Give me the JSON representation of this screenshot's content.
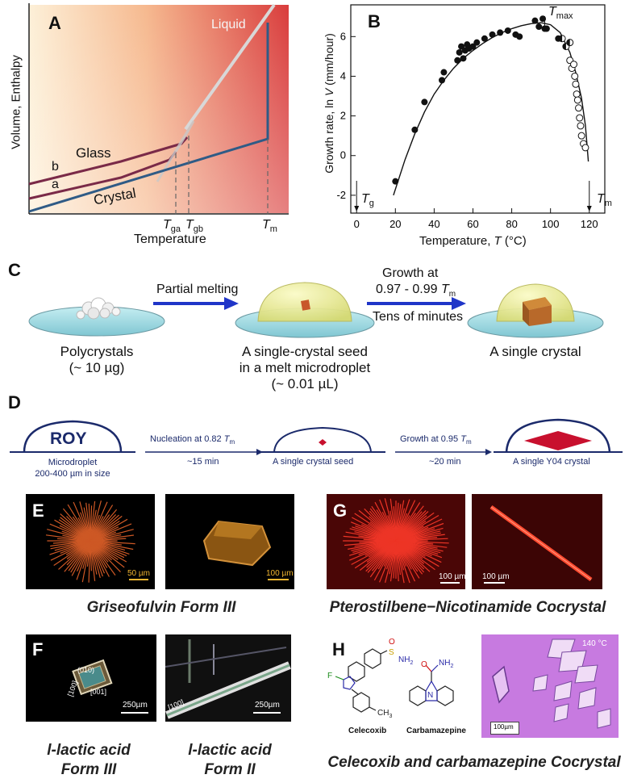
{
  "panel_a": {
    "label": "A",
    "ylabel": "Volume, Enthalpy",
    "xlabel": "Temperature",
    "liquid": "Liquid",
    "glass": "Glass",
    "crystal": "Crystal",
    "curve_b": "b",
    "curve_a": "a",
    "tga_main": "T",
    "tga_sub": "ga",
    "tgb_main": "T",
    "tgb_sub": "gb",
    "tm_main": "T",
    "tm_sub": "m"
  },
  "panel_b": {
    "label": "B",
    "ylabel_prefix": "Growth rate, ln",
    "ylabel_var": "V",
    "ylabel_unit": " (mm/hour)",
    "xlabel_prefix": "Temperature, ",
    "xlabel_var": "T",
    "xlabel_unit": " (°C)",
    "tmax_main": "T",
    "tmax_sub": "max",
    "tg_main": "T",
    "tg_sub": "g",
    "tm_main": "T",
    "tm_sub": "m",
    "x_ticks": [
      "0",
      "20",
      "40",
      "60",
      "80",
      "100",
      "120"
    ],
    "y_ticks": [
      "-2",
      "0",
      "2",
      "4",
      "6"
    ]
  },
  "chart_data": {
    "type": "scatter",
    "xlabel": "Temperature, T (°C)",
    "ylabel": "Growth rate, ln V (mm/hour)",
    "xlim": [
      -3,
      128
    ],
    "ylim": [
      -2.9,
      7.6
    ],
    "x_ticks": [
      0,
      20,
      40,
      60,
      80,
      100,
      120
    ],
    "y_ticks": [
      -2,
      0,
      2,
      4,
      6
    ],
    "grid": false,
    "series": [
      {
        "marker": "filled",
        "x": [
          20,
          30,
          35,
          44,
          45,
          52,
          53,
          54,
          55,
          56,
          57,
          58,
          60,
          62,
          66,
          70,
          74,
          78,
          82,
          84,
          92,
          94,
          96,
          97,
          98,
          104
        ],
        "y": [
          -1.3,
          1.3,
          2.7,
          3.8,
          4.2,
          4.8,
          5.2,
          5.5,
          4.9,
          5.3,
          5.6,
          5.4,
          5.5,
          5.7,
          5.9,
          6.1,
          6.2,
          6.3,
          6.1,
          6.0,
          6.8,
          6.5,
          6.9,
          6.4,
          6.4,
          5.9
        ]
      },
      {
        "marker": "half-filled",
        "x": [
          106,
          108,
          110
        ],
        "y": [
          5.9,
          5.5,
          5.7
        ]
      },
      {
        "marker": "open",
        "x": [
          110,
          111,
          112,
          112.5,
          113,
          113.5,
          114,
          114.5,
          115,
          115.5,
          116,
          117,
          118
        ],
        "y": [
          4.8,
          4.4,
          4.6,
          4.0,
          3.6,
          3.1,
          2.8,
          2.4,
          1.9,
          1.5,
          1.0,
          0.6,
          0.4
        ]
      }
    ],
    "curve": {
      "x": [
        19,
        25,
        30,
        35,
        40,
        45,
        50,
        55,
        60,
        65,
        70,
        75,
        80,
        85,
        90,
        95,
        100,
        105,
        110,
        113,
        116,
        118,
        119.5
      ],
      "y": [
        -2.0,
        -0.2,
        1.1,
        2.2,
        3.1,
        3.8,
        4.4,
        4.9,
        5.3,
        5.65,
        5.95,
        6.2,
        6.4,
        6.55,
        6.65,
        6.7,
        6.6,
        6.2,
        5.2,
        4.2,
        2.9,
        1.5,
        -0.3
      ]
    }
  },
  "panel_c": {
    "label": "C",
    "step1_top": "Partial melting",
    "step2_top1": "Growth at",
    "step2_top2": "0.97 - 0.99 ",
    "step2_tm": "T",
    "step2_tm_sub": "m",
    "step2_bottom": "Tens of minutes",
    "label1_l1": "Polycrystals",
    "label1_l2": "(~ 10 µg)",
    "label2_l1": "A single-crystal seed",
    "label2_l2": "in a melt microdroplet",
    "label2_l3": "(~ 0.01 µL)",
    "label3_l1": "A single crystal"
  },
  "panel_d": {
    "label": "D",
    "roy": "ROY",
    "droplet_l1": "Microdroplet",
    "droplet_l2": "200-400 µm in size",
    "step1_top": "Nucleation at 0.82 ",
    "step1_tm": "T",
    "step1_tm_sub": "m",
    "step1_bottom": "~15 min",
    "seed_label": "A single crystal seed",
    "step2_top": "Growth at 0.95 ",
    "step2_tm": "T",
    "step2_tm_sub": "m",
    "step2_bottom": "~20 min",
    "crystal_label": "A single Y04 crystal"
  },
  "panel_e": {
    "label": "E",
    "scale1": "50 µm",
    "scale2": "100 µm",
    "caption": "Griseofulvin Form III"
  },
  "panel_g": {
    "label": "G",
    "scale1": "100 µm",
    "scale2": "100 µm",
    "caption": "Pterostilbene−Nicotinamide Cocrystal"
  },
  "panel_f": {
    "label": "F",
    "idx_010": "(010)",
    "idx_100a": "[100]",
    "idx_001": "[001]",
    "idx_100b": "[100]",
    "scale1": "250µm",
    "scale2": "250µm",
    "caption1_l1": "l-lactic acid",
    "caption1_l2": "Form III",
    "caption2_l1": "l-lactic acid",
    "caption2_l2": "Form II"
  },
  "panel_h": {
    "label": "H",
    "so2nh2": "NH",
    "so2nh2_sub": "2",
    "s_atom": "S",
    "o_atom": "O",
    "f_atom": "F",
    "ch3": "CH",
    "ch3_sub": "3",
    "n_atom": "N",
    "amide_nh2": "NH",
    "amide_nh2_sub": "2",
    "amide_o": "O",
    "mol1": "Celecoxib",
    "mol2": "Carbamazepine",
    "temp": "140 °C",
    "scale": "100µm",
    "caption": "Celecoxib and carbamazepine Cocrystal"
  },
  "colors": {
    "liquid_line": "#d8d8d8",
    "glass_line": "#7a2a48",
    "crystal_line": "#2f5b86",
    "arrow_blue": "#1f35c8",
    "dish": "#9fd6de",
    "scale_yellow": "#f2b630"
  }
}
